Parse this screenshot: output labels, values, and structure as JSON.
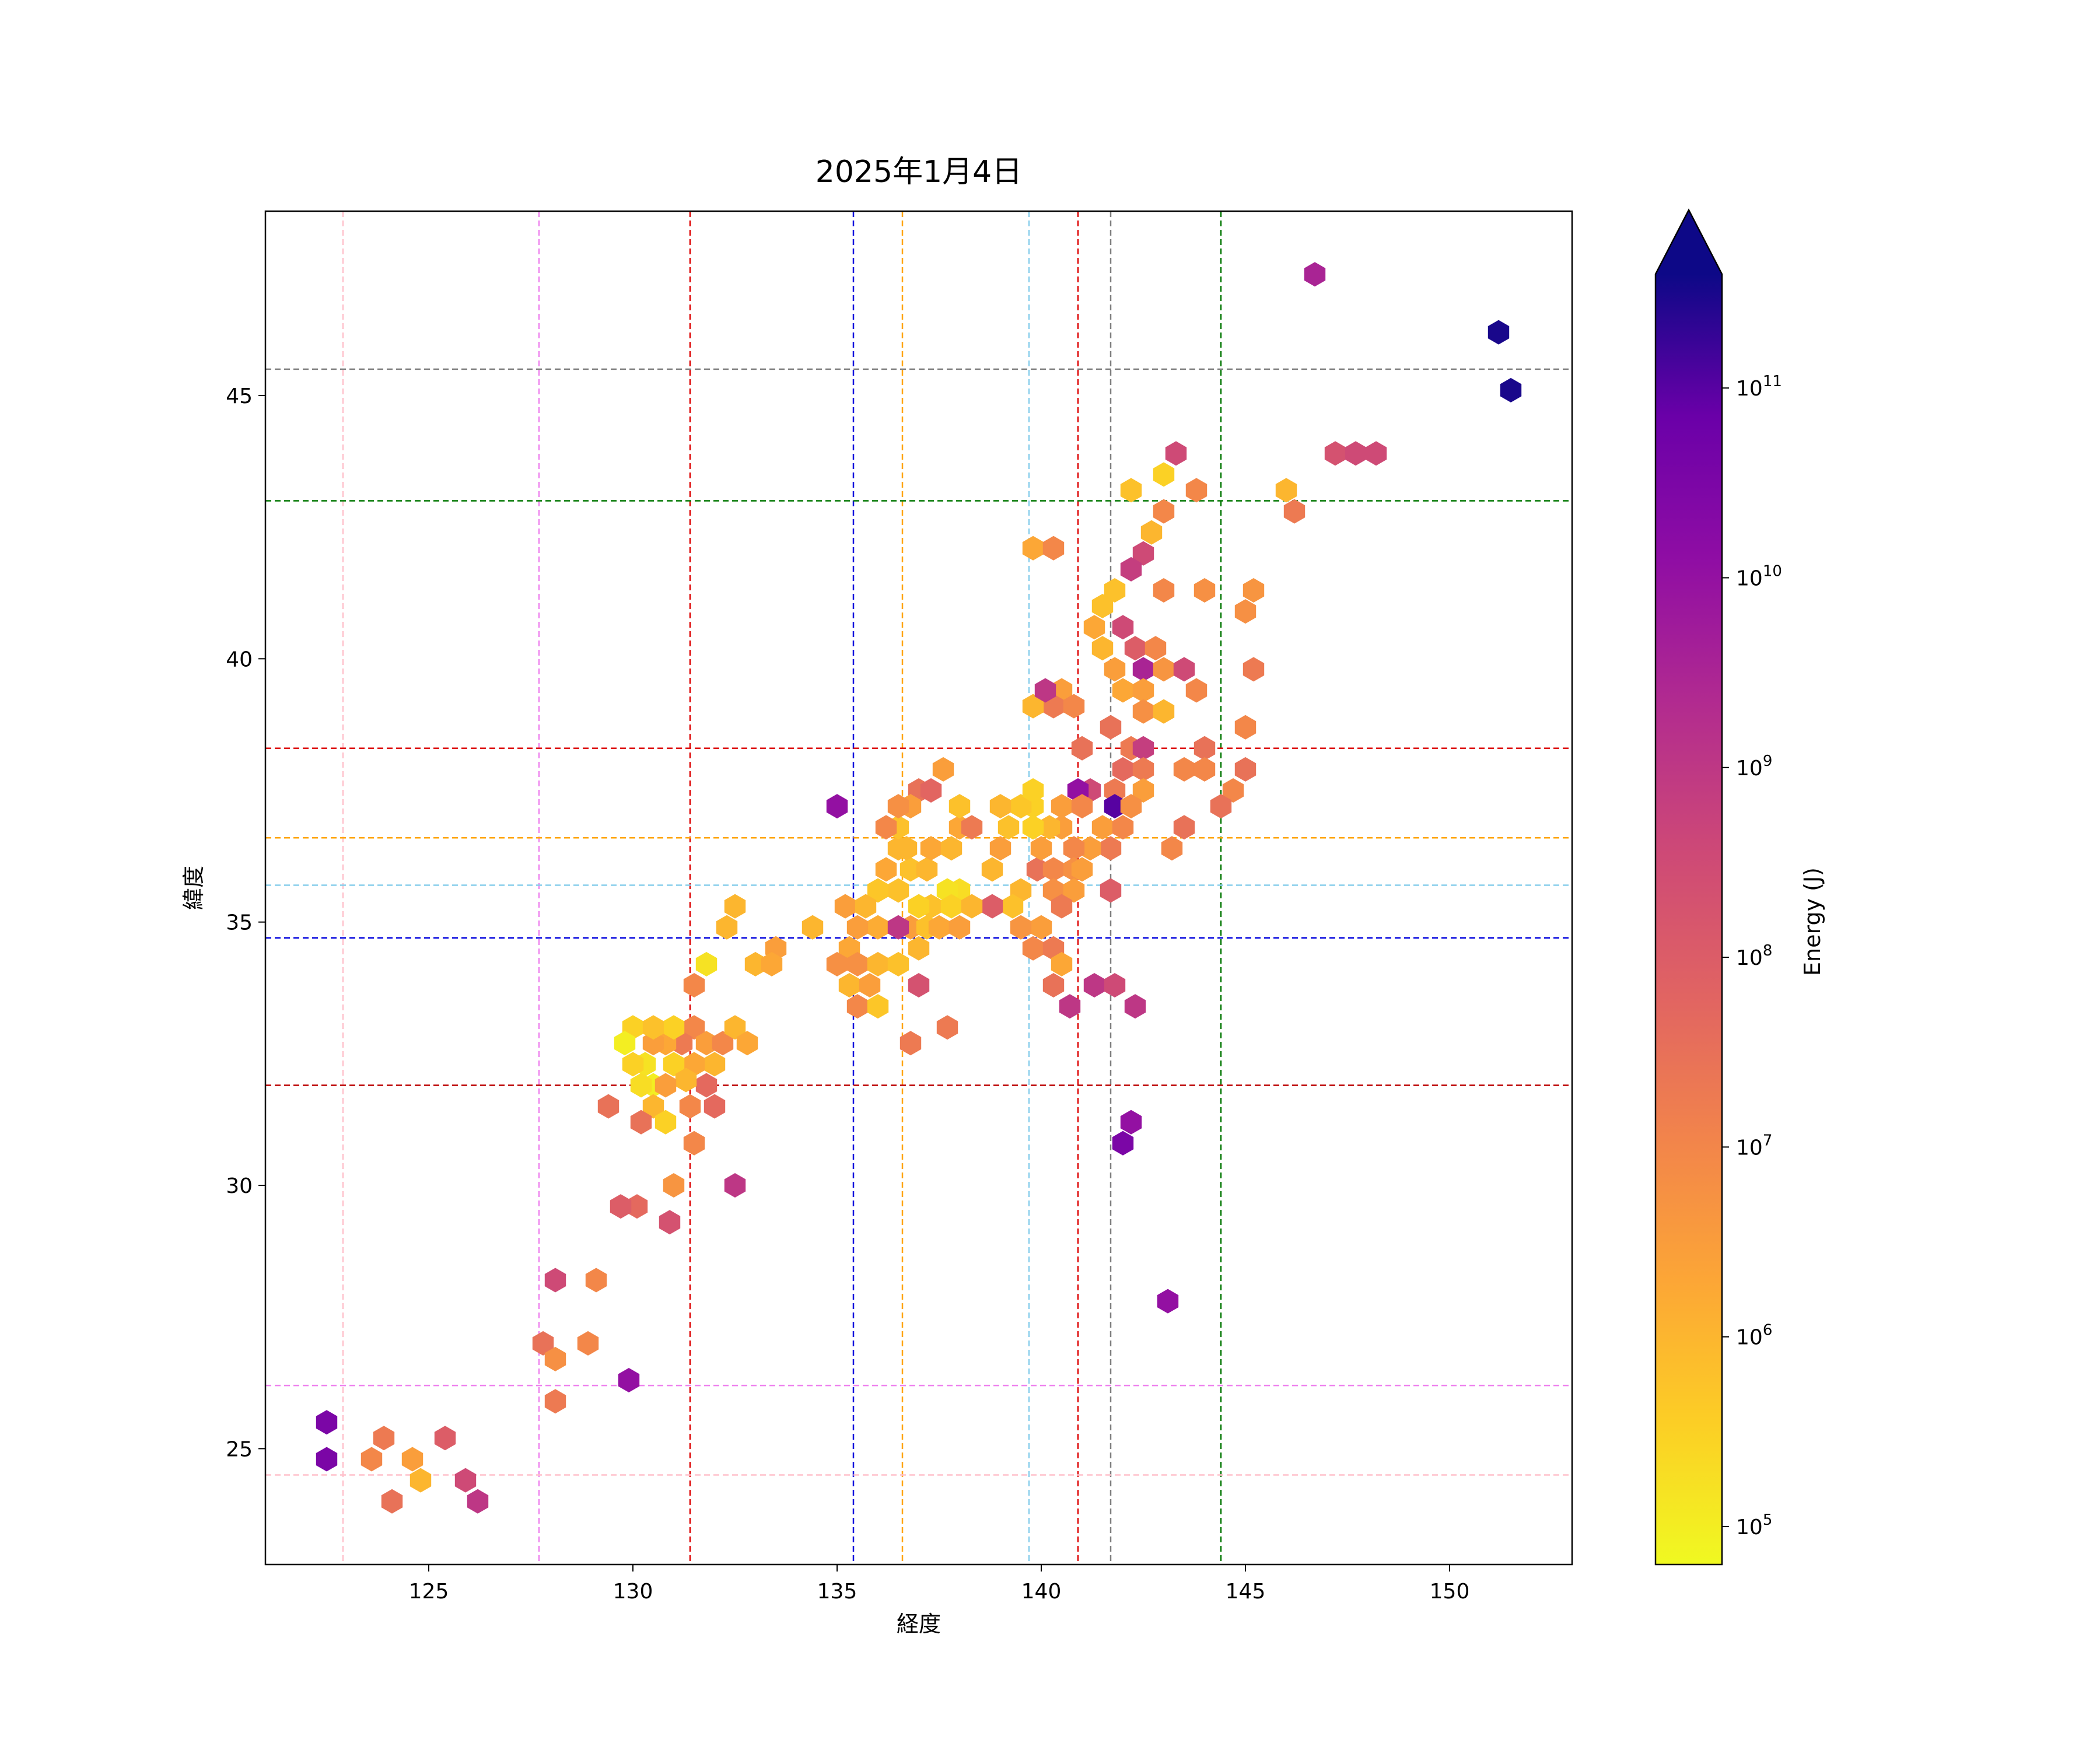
{
  "chart_data": {
    "type": "hexbin",
    "title": "2025年1月4日",
    "xlabel": "経度",
    "ylabel": "緯度",
    "xlim": [
      121,
      153
    ],
    "ylim": [
      22.8,
      48.5
    ],
    "xticks": [
      125,
      130,
      135,
      140,
      145,
      150
    ],
    "yticks": [
      25,
      30,
      35,
      40,
      45
    ],
    "colorbar": {
      "label": "Energy (J)",
      "scale": "log",
      "colormap": "plasma_r",
      "range_log10": [
        4.8,
        11.6
      ],
      "extend": "max",
      "ticks": [
        {
          "base": "10",
          "exp": "5",
          "log10": 5
        },
        {
          "base": "10",
          "exp": "6",
          "log10": 6
        },
        {
          "base": "10",
          "exp": "7",
          "log10": 7
        },
        {
          "base": "10",
          "exp": "8",
          "log10": 8
        },
        {
          "base": "10",
          "exp": "9",
          "log10": 9
        },
        {
          "base": "10",
          "exp": "10",
          "log10": 10
        },
        {
          "base": "10",
          "exp": "11",
          "log10": 11
        }
      ]
    },
    "reference_lines": {
      "vertical": [
        {
          "x": 122.9,
          "color": "#ffc0cb"
        },
        {
          "x": 127.7,
          "color": "#ee82ee"
        },
        {
          "x": 131.4,
          "color": "#dd0000"
        },
        {
          "x": 135.4,
          "color": "#0000dd"
        },
        {
          "x": 136.6,
          "color": "#ffa500"
        },
        {
          "x": 139.7,
          "color": "#87ceeb"
        },
        {
          "x": 140.9,
          "color": "#dd0000"
        },
        {
          "x": 141.7,
          "color": "#808080"
        },
        {
          "x": 144.4,
          "color": "#007700"
        }
      ],
      "horizontal": [
        {
          "y": 45.5,
          "color": "#808080"
        },
        {
          "y": 43.0,
          "color": "#007700"
        },
        {
          "y": 38.3,
          "color": "#dd0000"
        },
        {
          "y": 36.6,
          "color": "#ffa500"
        },
        {
          "y": 35.7,
          "color": "#87ceeb"
        },
        {
          "y": 34.7,
          "color": "#0000dd"
        },
        {
          "y": 31.9,
          "color": "#bb0000"
        },
        {
          "y": 26.2,
          "color": "#ee82ee"
        },
        {
          "y": 24.5,
          "color": "#ffc0cb"
        }
      ]
    },
    "hexbins": [
      [
        146.7,
        47.3,
        9.5
      ],
      [
        151.2,
        46.2,
        11.5
      ],
      [
        151.5,
        45.1,
        11.5
      ],
      [
        143.3,
        43.9,
        8.5
      ],
      [
        147.2,
        43.9,
        8.3
      ],
      [
        147.7,
        43.9,
        8.5
      ],
      [
        148.2,
        43.9,
        8.5
      ],
      [
        142.2,
        43.2,
        5.8
      ],
      [
        143.0,
        43.5,
        5.5
      ],
      [
        143.8,
        43.2,
        7.0
      ],
      [
        146.0,
        43.2,
        6.0
      ],
      [
        146.2,
        42.8,
        7.3
      ],
      [
        143.0,
        42.8,
        7.0
      ],
      [
        142.7,
        42.4,
        6.0
      ],
      [
        142.5,
        42.0,
        8.5
      ],
      [
        142.2,
        41.7,
        8.8
      ],
      [
        139.8,
        42.1,
        6.3
      ],
      [
        140.3,
        42.1,
        7.0
      ],
      [
        143.0,
        41.3,
        7.0
      ],
      [
        144.0,
        41.3,
        6.8
      ],
      [
        145.2,
        41.3,
        6.7
      ],
      [
        145.0,
        40.9,
        6.8
      ],
      [
        141.8,
        41.3,
        5.8
      ],
      [
        141.5,
        41.0,
        5.8
      ],
      [
        141.3,
        40.6,
        6.3
      ],
      [
        141.5,
        40.2,
        6.0
      ],
      [
        141.8,
        39.8,
        6.5
      ],
      [
        142.0,
        40.6,
        8.5
      ],
      [
        142.3,
        40.2,
        8.0
      ],
      [
        142.8,
        40.2,
        7.0
      ],
      [
        142.5,
        39.8,
        9.5
      ],
      [
        143.0,
        39.8,
        6.7
      ],
      [
        143.5,
        39.8,
        8.5
      ],
      [
        145.2,
        39.8,
        7.3
      ],
      [
        142.0,
        39.4,
        6.3
      ],
      [
        142.5,
        39.4,
        6.5
      ],
      [
        143.8,
        39.4,
        7.0
      ],
      [
        140.5,
        39.4,
        6.5
      ],
      [
        140.3,
        39.1,
        7.3
      ],
      [
        139.8,
        39.1,
        6.0
      ],
      [
        140.8,
        39.1,
        7.0
      ],
      [
        140.1,
        39.4,
        9.0
      ],
      [
        142.5,
        39.0,
        6.8
      ],
      [
        143.0,
        39.0,
        6.0
      ],
      [
        141.7,
        38.7,
        7.5
      ],
      [
        142.2,
        38.3,
        7.3
      ],
      [
        142.5,
        38.3,
        8.8
      ],
      [
        141.0,
        38.3,
        7.5
      ],
      [
        144.0,
        38.3,
        7.5
      ],
      [
        145.0,
        38.7,
        7.0
      ],
      [
        143.5,
        37.9,
        7.0
      ],
      [
        144.0,
        37.9,
        7.0
      ],
      [
        145.0,
        37.9,
        7.5
      ],
      [
        144.7,
        37.5,
        7.0
      ],
      [
        144.4,
        37.2,
        7.5
      ],
      [
        142.0,
        37.9,
        7.7
      ],
      [
        142.5,
        37.9,
        7.3
      ],
      [
        142.5,
        37.5,
        6.5
      ],
      [
        141.8,
        37.5,
        7.3
      ],
      [
        141.2,
        37.5,
        8.5
      ],
      [
        140.9,
        37.5,
        10.0
      ],
      [
        141.8,
        37.2,
        11.0
      ],
      [
        140.5,
        37.2,
        6.5
      ],
      [
        141.0,
        37.2,
        7.0
      ],
      [
        142.2,
        37.2,
        6.8
      ],
      [
        141.5,
        36.8,
        6.5
      ],
      [
        142.0,
        36.8,
        7.0
      ],
      [
        143.5,
        36.8,
        7.5
      ],
      [
        143.2,
        36.4,
        7.0
      ],
      [
        141.7,
        36.4,
        7.3
      ],
      [
        141.2,
        36.4,
        6.5
      ],
      [
        140.8,
        36.4,
        7.0
      ],
      [
        140.5,
        36.8,
        6.5
      ],
      [
        140.2,
        36.8,
        6.0
      ],
      [
        139.8,
        37.2,
        5.5
      ],
      [
        139.5,
        37.2,
        5.7
      ],
      [
        139.0,
        37.2,
        6.0
      ],
      [
        139.2,
        36.8,
        5.8
      ],
      [
        139.8,
        36.8,
        5.5
      ],
      [
        139.8,
        37.5,
        5.5
      ],
      [
        139.9,
        36.0,
        7.5
      ],
      [
        140.3,
        36.0,
        7.0
      ],
      [
        140.8,
        36.0,
        6.8
      ],
      [
        140.3,
        35.6,
        6.8
      ],
      [
        140.8,
        35.6,
        6.5
      ],
      [
        141.7,
        35.6,
        8.0
      ],
      [
        140.5,
        35.3,
        7.3
      ],
      [
        140.0,
        34.9,
        6.5
      ],
      [
        139.5,
        34.9,
        6.7
      ],
      [
        139.8,
        34.5,
        7.0
      ],
      [
        140.3,
        34.5,
        7.3
      ],
      [
        140.5,
        34.2,
        6.3
      ],
      [
        140.3,
        33.8,
        7.5
      ],
      [
        140.7,
        33.4,
        9.0
      ],
      [
        141.3,
        33.8,
        9.0
      ],
      [
        141.8,
        33.8,
        8.5
      ],
      [
        142.3,
        33.4,
        9.0
      ],
      [
        141.0,
        36.0,
        6.5
      ],
      [
        140.0,
        36.4,
        6.5
      ],
      [
        139.0,
        36.4,
        6.5
      ],
      [
        138.8,
        36.0,
        6.0
      ],
      [
        139.5,
        35.6,
        6.0
      ],
      [
        139.3,
        35.3,
        5.8
      ],
      [
        138.8,
        35.3,
        8.0
      ],
      [
        138.0,
        35.6,
        5.3
      ],
      [
        137.7,
        35.6,
        5.2
      ],
      [
        137.3,
        35.3,
        5.8
      ],
      [
        137.8,
        35.3,
        5.5
      ],
      [
        138.3,
        35.3,
        6.0
      ],
      [
        137.0,
        35.3,
        5.5
      ],
      [
        136.8,
        34.9,
        6.5
      ],
      [
        137.2,
        34.9,
        5.8
      ],
      [
        137.5,
        34.9,
        6.3
      ],
      [
        138.0,
        34.9,
        6.5
      ],
      [
        137.0,
        34.5,
        6.0
      ],
      [
        136.5,
        35.6,
        5.8
      ],
      [
        136.0,
        35.6,
        5.7
      ],
      [
        136.2,
        36.0,
        6.3
      ],
      [
        136.5,
        36.4,
        6.0
      ],
      [
        136.8,
        36.0,
        5.8
      ],
      [
        137.2,
        36.0,
        6.0
      ],
      [
        137.3,
        36.4,
        6.3
      ],
      [
        137.8,
        36.4,
        6.0
      ],
      [
        138.0,
        36.8,
        6.3
      ],
      [
        138.3,
        36.8,
        7.3
      ],
      [
        138.0,
        37.2,
        5.8
      ],
      [
        137.6,
        37.9,
        6.5
      ],
      [
        137.0,
        37.5,
        7.5
      ],
      [
        137.3,
        37.5,
        7.8
      ],
      [
        136.8,
        37.2,
        6.5
      ],
      [
        136.5,
        36.8,
        5.8
      ],
      [
        136.2,
        36.8,
        7.0
      ],
      [
        136.5,
        37.2,
        6.8
      ],
      [
        136.7,
        36.4,
        6.0
      ],
      [
        135.0,
        37.2,
        10.0
      ],
      [
        134.4,
        34.9,
        6.0
      ],
      [
        135.2,
        35.3,
        6.5
      ],
      [
        135.7,
        35.3,
        6.0
      ],
      [
        136.0,
        34.9,
        6.2
      ],
      [
        135.5,
        34.9,
        6.5
      ],
      [
        135.3,
        34.5,
        6.3
      ],
      [
        135.0,
        34.2,
        6.8
      ],
      [
        135.5,
        34.2,
        6.8
      ],
      [
        136.0,
        34.2,
        6.0
      ],
      [
        136.5,
        34.2,
        5.8
      ],
      [
        135.3,
        33.8,
        6.0
      ],
      [
        135.8,
        33.8,
        6.5
      ],
      [
        135.5,
        33.4,
        7.0
      ],
      [
        136.0,
        33.4,
        5.7
      ],
      [
        136.5,
        34.9,
        9.0
      ],
      [
        137.0,
        33.8,
        8.3
      ],
      [
        137.7,
        33.0,
        7.3
      ],
      [
        136.8,
        32.7,
        7.3
      ],
      [
        133.5,
        34.5,
        6.5
      ],
      [
        133.0,
        34.2,
        6.0
      ],
      [
        133.4,
        34.2,
        6.3
      ],
      [
        132.3,
        34.9,
        6.0
      ],
      [
        132.5,
        35.3,
        6.0
      ],
      [
        131.8,
        34.2,
        5.2
      ],
      [
        131.5,
        33.8,
        7.0
      ],
      [
        131.5,
        33.0,
        7.0
      ],
      [
        131.2,
        32.7,
        7.3
      ],
      [
        131.8,
        32.7,
        6.5
      ],
      [
        132.2,
        32.7,
        7.0
      ],
      [
        132.5,
        33.0,
        6.0
      ],
      [
        132.8,
        32.7,
        6.3
      ],
      [
        132.0,
        32.3,
        6.0
      ],
      [
        131.5,
        32.3,
        6.3
      ],
      [
        131.8,
        31.9,
        7.7
      ],
      [
        132.0,
        31.5,
        7.7
      ],
      [
        131.4,
        31.5,
        7.0
      ],
      [
        131.5,
        30.8,
        7.0
      ],
      [
        131.0,
        32.3,
        5.5
      ],
      [
        131.3,
        32.0,
        6.0
      ],
      [
        130.8,
        32.7,
        6.3
      ],
      [
        130.5,
        32.7,
        6.5
      ],
      [
        130.0,
        33.0,
        5.5
      ],
      [
        129.8,
        32.7,
        5.0
      ],
      [
        130.3,
        32.3,
        5.2
      ],
      [
        130.0,
        32.3,
        5.5
      ],
      [
        130.5,
        31.9,
        5.0
      ],
      [
        130.8,
        31.9,
        6.5
      ],
      [
        130.2,
        31.9,
        5.3
      ],
      [
        130.5,
        31.5,
        6.0
      ],
      [
        130.8,
        31.2,
        5.5
      ],
      [
        130.2,
        31.2,
        7.5
      ],
      [
        129.4,
        31.5,
        7.5
      ],
      [
        131.0,
        33.0,
        5.5
      ],
      [
        130.5,
        33.0,
        5.8
      ],
      [
        132.5,
        30.0,
        9.0
      ],
      [
        131.0,
        30.0,
        6.7
      ],
      [
        130.9,
        29.3,
        8.3
      ],
      [
        130.1,
        29.6,
        7.7
      ],
      [
        129.7,
        29.6,
        8.0
      ],
      [
        128.1,
        28.2,
        8.5
      ],
      [
        129.1,
        28.2,
        7.0
      ],
      [
        127.8,
        27.0,
        7.5
      ],
      [
        128.9,
        27.0,
        7.0
      ],
      [
        128.1,
        26.7,
        6.8
      ],
      [
        128.1,
        25.9,
        7.3
      ],
      [
        129.9,
        26.3,
        10.0
      ],
      [
        122.5,
        25.5,
        10.5
      ],
      [
        122.5,
        24.8,
        10.5
      ],
      [
        123.6,
        24.8,
        7.0
      ],
      [
        123.9,
        25.2,
        7.3
      ],
      [
        124.6,
        24.8,
        6.5
      ],
      [
        124.8,
        24.4,
        6.0
      ],
      [
        125.4,
        25.2,
        8.0
      ],
      [
        125.9,
        24.4,
        8.5
      ],
      [
        126.2,
        24.0,
        9.0
      ],
      [
        124.1,
        24.0,
        7.5
      ],
      [
        142.0,
        30.8,
        10.5
      ],
      [
        142.2,
        31.2,
        10.0
      ],
      [
        143.1,
        27.8,
        10.0
      ]
    ]
  }
}
